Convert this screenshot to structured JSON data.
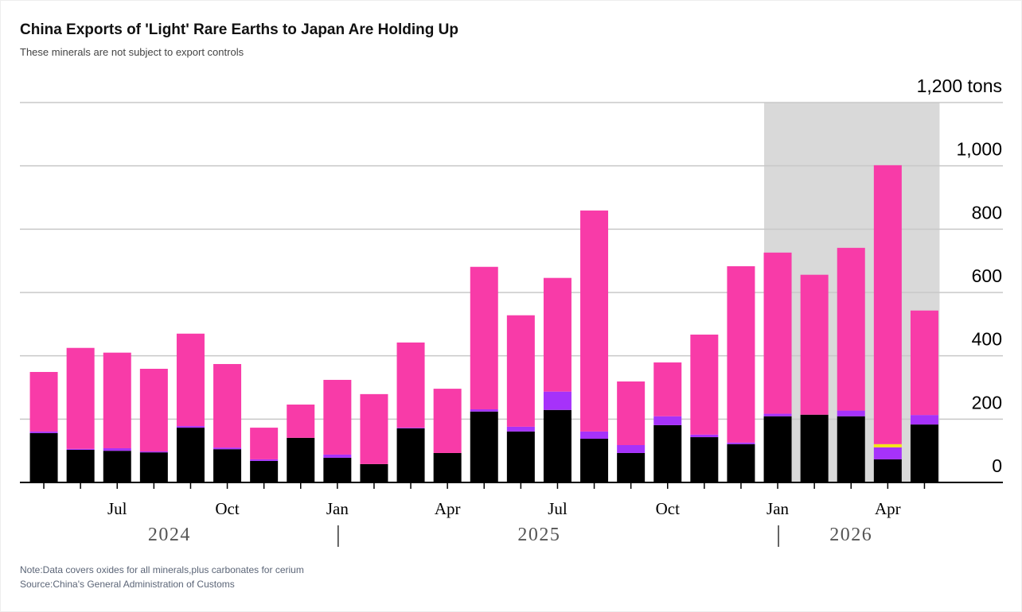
{
  "chart_data": {
    "type": "stacked_bar",
    "title": "China Exports of 'Light' Rare Earths to Japan Are Holding Up",
    "subtitle": "These minerals are not subject to export controls",
    "note": "Note:Data covers oxides for all minerals,plus carbonates for cerium",
    "source": "Source:China's General Administration of Customs",
    "categories": [
      null,
      null,
      "Jul",
      null,
      null,
      "Oct",
      null,
      null,
      "Jan",
      null,
      null,
      "Apr",
      null,
      null,
      "Jul",
      null,
      null,
      "Oct",
      null,
      null,
      "Jan",
      null,
      null,
      "Apr",
      null
    ],
    "years": [
      "2024",
      "2025",
      "2026"
    ],
    "series": [
      {
        "color": "#000000",
        "values": [
          156,
          103,
          100,
          95,
          173,
          105,
          68,
          141,
          78,
          58,
          171,
          93,
          224,
          161,
          229,
          138,
          93,
          181,
          143,
          121,
          209,
          214,
          209,
          73,
          183
        ]
      },
      {
        "color": "#a632fa",
        "values": [
          5,
          3,
          8,
          3,
          5,
          5,
          5,
          0,
          10,
          0,
          2,
          0,
          7,
          15,
          58,
          23,
          25,
          28,
          8,
          5,
          8,
          0,
          18,
          38,
          30
        ]
      },
      {
        "color": "#f5e616",
        "values": [
          0,
          0,
          0,
          0,
          0,
          0,
          0,
          0,
          0,
          0,
          0,
          0,
          0,
          0,
          0,
          0,
          0,
          0,
          0,
          0,
          0,
          0,
          0,
          10,
          0
        ]
      },
      {
        "color": "#f83ba8",
        "values": [
          188,
          319,
          302,
          261,
          292,
          264,
          100,
          105,
          236,
          221,
          269,
          203,
          450,
          352,
          359,
          698,
          201,
          170,
          316,
          557,
          509,
          442,
          514,
          881,
          330
        ]
      }
    ],
    "ylim": [
      0,
      1200
    ],
    "yticks": [
      0,
      200,
      400,
      600,
      800,
      {
        "value": 1000,
        "label": "1,000"
      },
      {
        "value": 1200,
        "label": "1,200 tons"
      }
    ],
    "grid": true
  }
}
